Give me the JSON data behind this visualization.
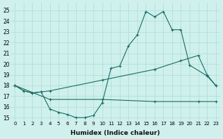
{
  "xlabel": "Humidex (Indice chaleur)",
  "xlim": [
    -0.5,
    23.5
  ],
  "ylim": [
    14.7,
    25.7
  ],
  "yticks": [
    15,
    16,
    17,
    18,
    19,
    20,
    21,
    22,
    23,
    24,
    25
  ],
  "xticks": [
    0,
    1,
    2,
    3,
    4,
    5,
    6,
    7,
    8,
    9,
    10,
    11,
    12,
    13,
    14,
    15,
    16,
    17,
    18,
    19,
    20,
    21,
    22,
    23
  ],
  "background_color": "#cff0ec",
  "grid_color": "#aaddd8",
  "line_color": "#1a6b64",
  "series_main": {
    "x": [
      0,
      1,
      2,
      3,
      4,
      5,
      6,
      7,
      8,
      9,
      10,
      11,
      12,
      13,
      14,
      15,
      16,
      17,
      18,
      19,
      20,
      22,
      23
    ],
    "y": [
      18.0,
      17.5,
      17.3,
      17.4,
      15.8,
      15.5,
      15.3,
      15.0,
      15.0,
      15.2,
      16.4,
      19.6,
      19.8,
      21.7,
      22.7,
      24.9,
      24.4,
      24.9,
      23.2,
      23.2,
      19.9,
      18.9,
      18.0
    ]
  },
  "series_upper": {
    "x": [
      0,
      1,
      2,
      3,
      4,
      10,
      16,
      19,
      21,
      22,
      23
    ],
    "y": [
      18.0,
      17.5,
      17.3,
      17.4,
      17.5,
      18.5,
      19.5,
      20.3,
      20.8,
      19.0,
      18.0
    ]
  },
  "series_lower": {
    "x": [
      0,
      4,
      10,
      16,
      21,
      23
    ],
    "y": [
      18.0,
      16.7,
      16.7,
      16.5,
      16.5,
      16.5
    ]
  }
}
